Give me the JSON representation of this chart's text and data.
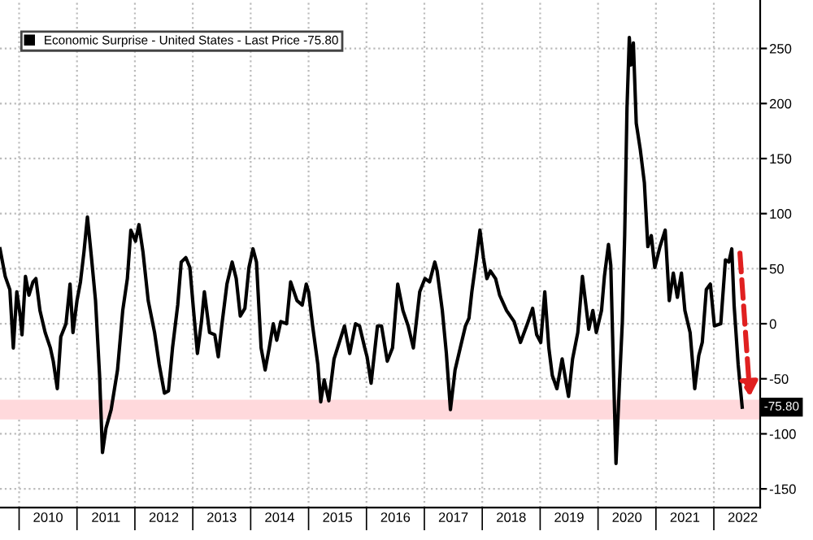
{
  "chart_data": {
    "type": "line",
    "legend": "top left",
    "grid": true,
    "marker": "none",
    "line_style": "solid",
    "xlim": [
      2009.67,
      2022.8
    ],
    "ylim": [
      -167,
      294
    ],
    "xticks": [
      {
        "value": 2010,
        "label": null
      },
      {
        "value": 2010.5,
        "label": "2010"
      },
      {
        "value": 2011,
        "label": null
      },
      {
        "value": 2011.5,
        "label": "2011"
      },
      {
        "value": 2012,
        "label": null
      },
      {
        "value": 2012.5,
        "label": "2012"
      },
      {
        "value": 2013,
        "label": null
      },
      {
        "value": 2013.5,
        "label": "2013"
      },
      {
        "value": 2014,
        "label": null
      },
      {
        "value": 2014.5,
        "label": "2014"
      },
      {
        "value": 2015,
        "label": null
      },
      {
        "value": 2015.5,
        "label": "2015"
      },
      {
        "value": 2016,
        "label": null
      },
      {
        "value": 2016.5,
        "label": "2016"
      },
      {
        "value": 2017,
        "label": null
      },
      {
        "value": 2017.5,
        "label": "2017"
      },
      {
        "value": 2018,
        "label": null
      },
      {
        "value": 2018.5,
        "label": "2018"
      },
      {
        "value": 2019,
        "label": null
      },
      {
        "value": 2019.5,
        "label": "2019"
      },
      {
        "value": 2020,
        "label": null
      },
      {
        "value": 2020.5,
        "label": "2020"
      },
      {
        "value": 2021,
        "label": null
      },
      {
        "value": 2021.5,
        "label": "2021"
      },
      {
        "value": 2022,
        "label": null
      },
      {
        "value": 2022.5,
        "label": "2022"
      }
    ],
    "yticks": [
      -150,
      -100,
      -50,
      0,
      50,
      100,
      150,
      200,
      250
    ],
    "bands": [
      {
        "axis": "y",
        "from": -87,
        "to": -69,
        "color": "#ffd9dc"
      }
    ],
    "annotations": [
      {
        "text": "-75.80",
        "y": -75.8
      }
    ],
    "series": [
      {
        "name": "Economic Surprise - United States - Last Price -75.80",
        "color": "#000000",
        "x": [
          2009.67,
          2009.76,
          2009.84,
          2009.9,
          2009.96,
          2010.02,
          2010.05,
          2010.11,
          2010.17,
          2010.24,
          2010.29,
          2010.36,
          2010.45,
          2010.54,
          2010.59,
          2010.66,
          2010.72,
          2010.81,
          2010.88,
          2010.93,
          2011.0,
          2011.06,
          2011.12,
          2011.18,
          2011.25,
          2011.32,
          2011.39,
          2011.44,
          2011.5,
          2011.59,
          2011.7,
          2011.79,
          2011.87,
          2011.93,
          2012.01,
          2012.07,
          2012.14,
          2012.23,
          2012.34,
          2012.42,
          2012.51,
          2012.58,
          2012.65,
          2012.74,
          2012.8,
          2012.88,
          2012.95,
          2013.01,
          2013.08,
          2013.15,
          2013.2,
          2013.29,
          2013.38,
          2013.44,
          2013.5,
          2013.59,
          2013.68,
          2013.75,
          2013.82,
          2013.9,
          2013.97,
          2014.04,
          2014.1,
          2014.18,
          2014.25,
          2014.32,
          2014.39,
          2014.45,
          2014.52,
          2014.62,
          2014.69,
          2014.8,
          2014.89,
          2014.96,
          2015.0,
          2015.07,
          2015.16,
          2015.21,
          2015.27,
          2015.35,
          2015.44,
          2015.53,
          2015.62,
          2015.71,
          2015.81,
          2015.88,
          2015.97,
          2016.01,
          2016.08,
          2016.19,
          2016.26,
          2016.36,
          2016.45,
          2016.54,
          2016.63,
          2016.72,
          2016.81,
          2016.92,
          2017.01,
          2017.09,
          2017.18,
          2017.22,
          2017.31,
          2017.38,
          2017.45,
          2017.53,
          2017.62,
          2017.71,
          2017.77,
          2017.82,
          2017.89,
          2017.96,
          2018.02,
          2018.08,
          2018.14,
          2018.23,
          2018.3,
          2018.42,
          2018.55,
          2018.66,
          2018.78,
          2018.87,
          2018.94,
          2019.01,
          2019.08,
          2019.15,
          2019.21,
          2019.29,
          2019.38,
          2019.45,
          2019.49,
          2019.56,
          2019.65,
          2019.73,
          2019.79,
          2019.84,
          2019.91,
          2019.97,
          2020.06,
          2020.11,
          2020.18,
          2020.22,
          2020.27,
          2020.31,
          2020.37,
          2020.42,
          2020.46,
          2020.5,
          2020.54,
          2020.57,
          2020.61,
          2020.66,
          2020.73,
          2020.8,
          2020.86,
          2020.92,
          2020.98,
          2021.07,
          2021.16,
          2021.23,
          2021.3,
          2021.37,
          2021.44,
          2021.5,
          2021.59,
          2021.67,
          2021.74,
          2021.8,
          2021.87,
          2021.94,
          2022.01,
          2022.12,
          2022.2,
          2022.26,
          2022.31,
          2022.35,
          2022.42,
          2022.49
        ],
        "values": [
          68,
          43,
          31,
          -22,
          29,
          7,
          -10,
          43,
          26,
          38,
          41,
          12,
          -8,
          -22,
          -34,
          -59,
          -12,
          0,
          36,
          -8,
          21,
          38,
          65,
          97,
          60,
          21,
          -47,
          -117,
          -95,
          -78,
          -42,
          12,
          41,
          85,
          75,
          90,
          65,
          21,
          -8,
          -37,
          -63,
          -61,
          -22,
          17,
          56,
          60,
          51,
          14,
          -27,
          2,
          29,
          -8,
          -10,
          -30,
          -2,
          36,
          56,
          41,
          7,
          14,
          51,
          68,
          56,
          -22,
          -42,
          -22,
          0,
          -15,
          2,
          0,
          38,
          21,
          17,
          36,
          29,
          -2,
          -37,
          -71,
          -51,
          -70,
          -32,
          -17,
          -2,
          -27,
          0,
          -2,
          -22,
          -30,
          -54,
          -2,
          -2,
          -34,
          -22,
          36,
          12,
          -2,
          -22,
          29,
          41,
          38,
          56,
          48,
          12,
          -27,
          -78,
          -42,
          -22,
          -2,
          5,
          29,
          56,
          85,
          60,
          41,
          48,
          41,
          26,
          12,
          2,
          -17,
          0,
          14,
          -10,
          -17,
          29,
          -22,
          -47,
          -59,
          -32,
          -54,
          -66,
          -32,
          -8,
          43,
          17,
          -5,
          12,
          -8,
          12,
          43,
          72,
          53,
          -49,
          -127,
          -54,
          2,
          80,
          196,
          260,
          235,
          255,
          182,
          158,
          128,
          70,
          80,
          51,
          70,
          85,
          21,
          46,
          24,
          46,
          12,
          -8,
          -59,
          -29,
          -17,
          31,
          36,
          -2,
          0,
          58,
          56,
          68,
          17,
          -37,
          -75.8
        ]
      }
    ]
  }
}
